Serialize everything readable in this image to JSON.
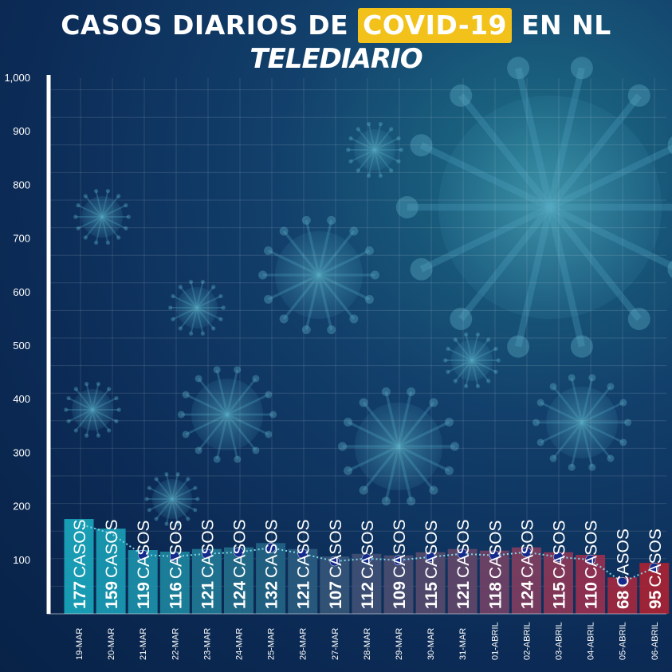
{
  "header": {
    "title_part1": "CASOS DIARIOS DE",
    "title_highlight": "COVID-19",
    "title_part2": "EN NL",
    "brand": "TELEDIARIO"
  },
  "colors": {
    "highlight": "#f2c21b",
    "background_dark": "#0b2a55",
    "background_teal": "#1d6f86",
    "axis": "#ffffff",
    "trend_line": "#7fd6e6",
    "point": "#142a8c"
  },
  "chart_data": {
    "type": "bar",
    "title": "CASOS DIARIOS DE COVID-19 EN NL",
    "categories": [
      "19-MAR",
      "20-MAR",
      "21-MAR",
      "22-MAR",
      "23-MAR",
      "24-MAR",
      "25-MAR",
      "26-MAR",
      "27-MAR",
      "28-MAR",
      "29-MAR",
      "30-MAR",
      "31-MAR",
      "01-ABRIL",
      "02-ABRIL",
      "03-ABRIL",
      "04-ABRIL",
      "05-ABRIL",
      "06-ABRIL"
    ],
    "values": [
      177,
      159,
      119,
      116,
      121,
      124,
      132,
      121,
      107,
      112,
      109,
      115,
      121,
      118,
      124,
      115,
      110,
      68,
      95
    ],
    "value_suffix": "CASOS",
    "bar_colors": [
      "#19a9be",
      "#1a9fb6",
      "#1c92ab",
      "#1e86a0",
      "#207a96",
      "#226f8c",
      "#246586",
      "#2a5c80",
      "#355579",
      "#405175",
      "#4b4e71",
      "#574b6d",
      "#634769",
      "#734366",
      "#823e5f",
      "#8e3758",
      "#9a3050",
      "#a5283f",
      "#ad2232"
    ],
    "trend_line": true,
    "y_ticks": [
      100,
      200,
      300,
      400,
      500,
      600,
      700,
      800,
      900,
      1000
    ],
    "y_tick_labels": [
      "100",
      "200",
      "300",
      "400",
      "500",
      "600",
      "700",
      "800",
      "900",
      "1,000"
    ],
    "ylim": [
      0,
      1000
    ],
    "xlabel": "",
    "ylabel": "",
    "grid": true
  }
}
